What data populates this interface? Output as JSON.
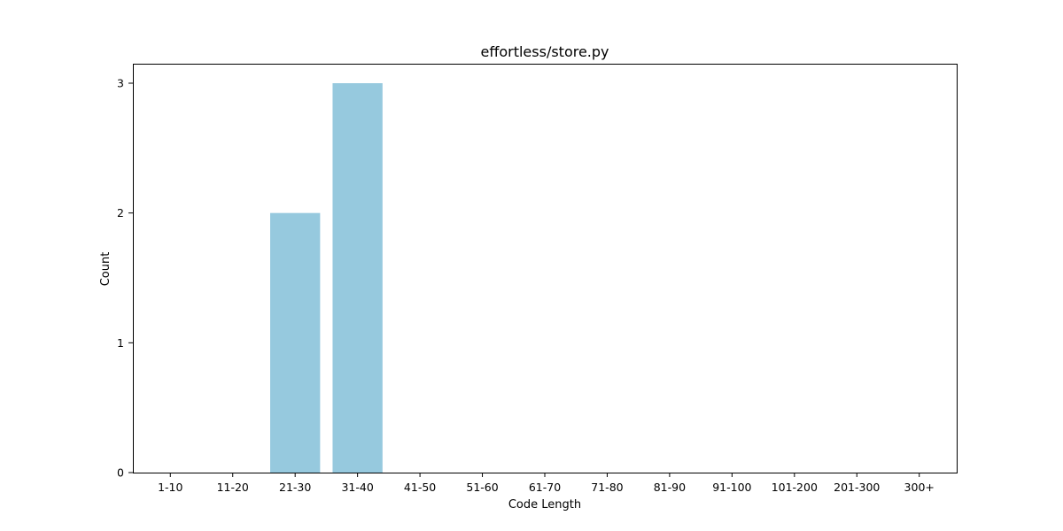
{
  "chart_data": {
    "type": "bar",
    "title": "effortless/store.py",
    "xlabel": "Code Length",
    "ylabel": "Count",
    "categories": [
      "1-10",
      "11-20",
      "21-30",
      "31-40",
      "41-50",
      "51-60",
      "61-70",
      "71-80",
      "81-90",
      "91-100",
      "101-200",
      "201-300",
      "300+"
    ],
    "values": [
      0,
      0,
      2,
      3,
      0,
      0,
      0,
      0,
      0,
      0,
      0,
      0,
      0
    ],
    "ylim": [
      0,
      3.15
    ],
    "yticks": [
      0,
      1,
      2,
      3
    ],
    "bar_color": "#96c9de",
    "grid": false,
    "legend": "none"
  }
}
